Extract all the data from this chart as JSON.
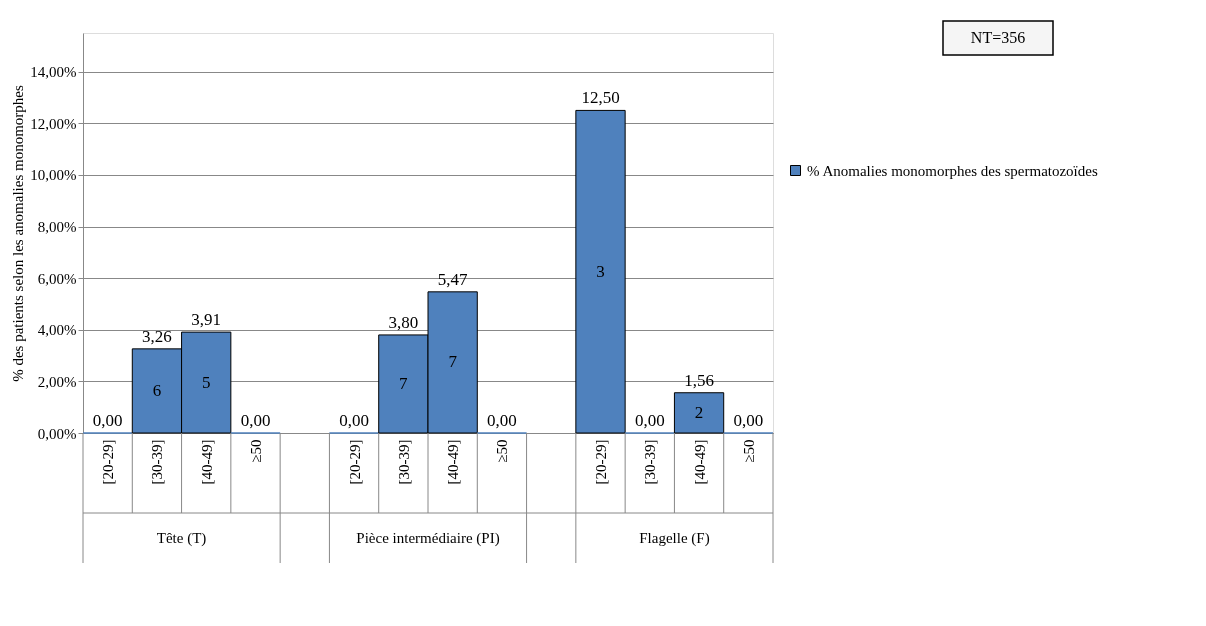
{
  "chart_data": {
    "type": "bar",
    "ylabel": "% des patients selon les anomalies monomorphes",
    "categories": [
      "[20-29]",
      "[30-39]",
      "[40-49]",
      "≥50",
      null,
      "[20-29]",
      "[30-39]",
      "[40-49]",
      "≥50",
      null,
      "[20-29]",
      "[30-39]",
      "[40-49]",
      "≥50"
    ],
    "series": [
      {
        "name": "% Anomalies monomorphes des spermatozoïdes",
        "color": "#4f81bd",
        "values": [
          0,
          3.26,
          3.91,
          0,
          null,
          0,
          3.8,
          5.47,
          0,
          null,
          12.5,
          0,
          1.56,
          0
        ],
        "value_labels": [
          "0,00",
          "3,26",
          "3,91",
          "0,00",
          null,
          "0,00",
          "3,80",
          "5,47",
          "0,00",
          null,
          "12,50",
          "0,00",
          "1,56",
          "0,00"
        ]
      }
    ],
    "ylim": [
      0,
      15.5
    ],
    "yticks": [
      {
        "value": 0,
        "label": "0,00%"
      },
      {
        "value": 2,
        "label": "2,00%"
      },
      {
        "value": 4,
        "label": "4,00%"
      },
      {
        "value": 6,
        "label": "6,00%"
      },
      {
        "value": 8,
        "label": "8,00%"
      },
      {
        "value": 10,
        "label": "10,00%"
      },
      {
        "value": 12,
        "label": "12,00%"
      },
      {
        "value": 14,
        "label": "14,00%"
      }
    ],
    "grid": "y",
    "legend": "right",
    "annotations": [
      "Tête  (T)",
      "Pièce intermédiaire (PI)",
      "Flagelle (F)",
      "NT=356",
      "6",
      "5",
      "7",
      "7",
      "3",
      "2"
    ]
  }
}
